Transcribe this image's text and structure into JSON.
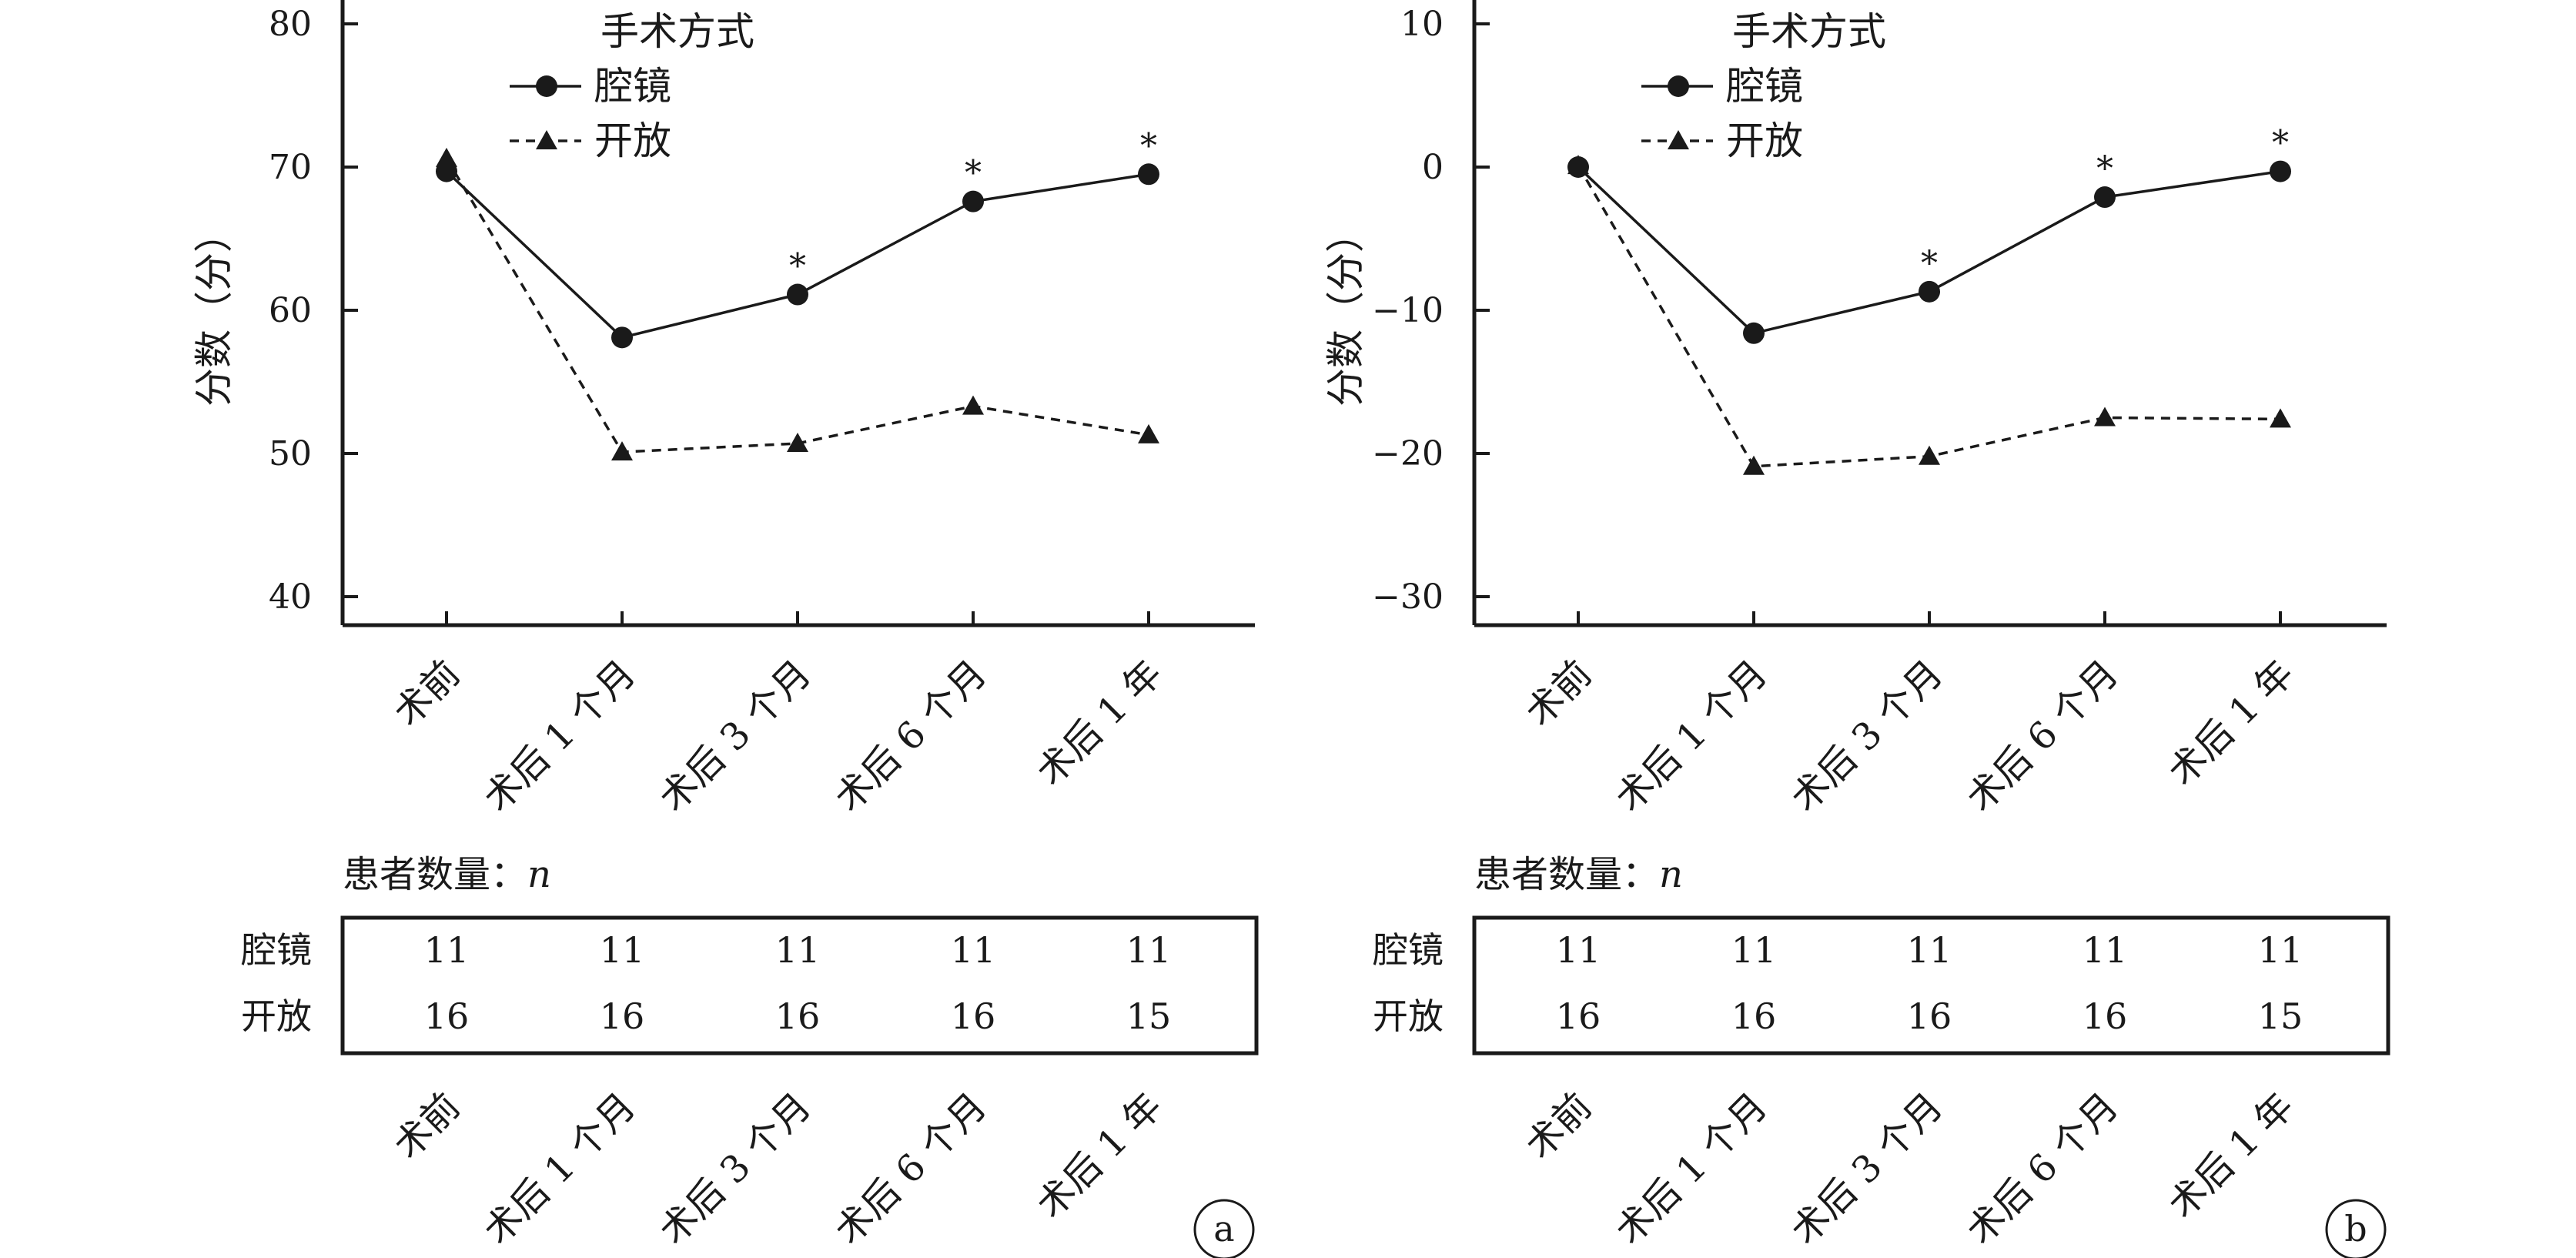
{
  "chart_data": [
    {
      "type": "line",
      "panel": "a",
      "categories": [
        "术前",
        "术后 1 个月",
        "术后 3 个月",
        "术后 6 个月",
        "术后 1 年"
      ],
      "ylabel": "分数（分）",
      "ylim": [
        40,
        80
      ],
      "yticks": [
        40,
        50,
        60,
        70,
        80
      ],
      "legend_title": "手术方式",
      "legend_position": "top-left",
      "series": [
        {
          "name": "腔镜",
          "marker": "circle",
          "line": "solid",
          "values": [
            69.7,
            58.1,
            61.1,
            67.6,
            69.5
          ]
        },
        {
          "name": "开放",
          "marker": "triangle",
          "line": "dashed",
          "values": [
            70.6,
            50.1,
            50.7,
            53.3,
            51.3
          ]
        }
      ],
      "significance": [
        "",
        "",
        "*",
        "*",
        "*"
      ],
      "table_title": "患者数量：",
      "table_title_var": "n",
      "table_rows": [
        {
          "label": "腔镜",
          "values": [
            "11",
            "11",
            "11",
            "11",
            "11"
          ]
        },
        {
          "label": "开放",
          "values": [
            "16",
            "16",
            "16",
            "16",
            "15"
          ]
        }
      ]
    },
    {
      "type": "line",
      "panel": "b",
      "categories": [
        "术前",
        "术后 1 个月",
        "术后 3 个月",
        "术后 6 个月",
        "术后 1 年"
      ],
      "ylabel": "分数（分）",
      "ylim": [
        -30,
        10
      ],
      "yticks": [
        -30,
        -20,
        -10,
        0,
        10
      ],
      "legend_title": "手术方式",
      "legend_position": "top-left",
      "series": [
        {
          "name": "腔镜",
          "marker": "circle",
          "line": "solid",
          "values": [
            0.0,
            -11.6,
            -8.7,
            -2.1,
            -0.3
          ]
        },
        {
          "name": "开放",
          "marker": "triangle",
          "line": "dashed",
          "values": [
            0.1,
            -20.9,
            -20.2,
            -17.5,
            -17.6
          ]
        }
      ],
      "significance": [
        "",
        "",
        "*",
        "*",
        "*"
      ],
      "table_title": "患者数量：",
      "table_title_var": "n",
      "table_rows": [
        {
          "label": "腔镜",
          "values": [
            "11",
            "11",
            "11",
            "11",
            "11"
          ]
        },
        {
          "label": "开放",
          "values": [
            "16",
            "16",
            "16",
            "16",
            "15"
          ]
        }
      ]
    }
  ]
}
